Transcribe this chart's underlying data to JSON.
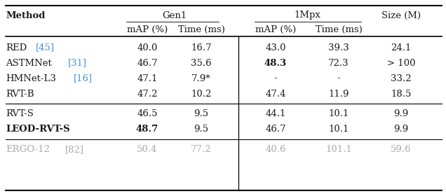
{
  "rows": [
    {
      "method": "RED",
      "ref": "[45]",
      "gen1_map": "40.0",
      "gen1_time": "16.7",
      "mpx_map": "43.0",
      "mpx_time": "39.3",
      "size": "24.1",
      "bold_method": false,
      "bold_gen1_map": false,
      "bold_mpx_map": false,
      "gray": false
    },
    {
      "method": "ASTMNet",
      "ref": "[31]",
      "gen1_map": "46.7",
      "gen1_time": "35.6",
      "mpx_map": "48.3",
      "mpx_time": "72.3",
      "size": "> 100",
      "bold_method": false,
      "bold_gen1_map": false,
      "bold_mpx_map": true,
      "gray": false
    },
    {
      "method": "HMNet-L3",
      "ref": "[16]",
      "gen1_map": "47.1",
      "gen1_time": "7.9*",
      "mpx_map": "-",
      "mpx_time": "-",
      "size": "33.2",
      "bold_method": false,
      "bold_gen1_map": false,
      "bold_mpx_map": false,
      "gray": false
    },
    {
      "method": "RVT-B",
      "ref": "",
      "gen1_map": "47.2",
      "gen1_time": "10.2",
      "mpx_map": "47.4",
      "mpx_time": "11.9",
      "size": "18.5",
      "bold_method": false,
      "bold_gen1_map": false,
      "bold_mpx_map": false,
      "gray": false
    },
    {
      "method": "RVT-S",
      "ref": "",
      "gen1_map": "46.5",
      "gen1_time": "9.5",
      "mpx_map": "44.1",
      "mpx_time": "10.1",
      "size": "9.9",
      "bold_method": false,
      "bold_gen1_map": false,
      "bold_mpx_map": false,
      "gray": false
    },
    {
      "method": "LEOD-RVT-S",
      "ref": "",
      "gen1_map": "48.7",
      "gen1_time": "9.5",
      "mpx_map": "46.7",
      "mpx_time": "10.1",
      "size": "9.9",
      "bold_method": true,
      "bold_gen1_map": true,
      "bold_mpx_map": false,
      "gray": false
    },
    {
      "method": "ERGO-12",
      "ref": "[82]",
      "gen1_map": "50.4",
      "gen1_time": "77.2",
      "mpx_map": "40.6",
      "mpx_time": "101.1",
      "size": "59.6",
      "bold_method": false,
      "bold_gen1_map": false,
      "bold_mpx_map": false,
      "gray": true
    }
  ],
  "background_color": "#ffffff",
  "text_color": "#1a1a1a",
  "gray_color": "#aaaaaa",
  "blue_color": "#4a90d9",
  "font_size": 9.5
}
